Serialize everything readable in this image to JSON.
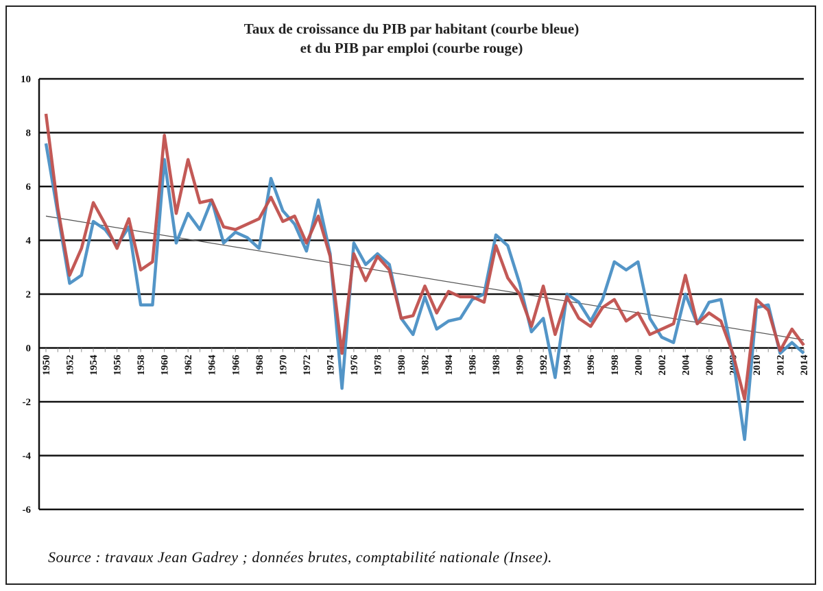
{
  "chart_data": {
    "type": "line",
    "title_lines": [
      "Taux de croissance du PIB par habitant (courbe bleue)",
      "et du PIB par emploi (courbe rouge)"
    ],
    "xlabel": "",
    "ylabel": "",
    "ylim": [
      -6,
      10
    ],
    "yticks": [
      "-6",
      "-4",
      "-2",
      "0",
      "2",
      "4",
      "6",
      "8",
      "10"
    ],
    "xlim": [
      1950,
      2014
    ],
    "xticks": [
      "1950",
      "1952",
      "1954",
      "1956",
      "1958",
      "1960",
      "1962",
      "1964",
      "1966",
      "1968",
      "1970",
      "1972",
      "1974",
      "1976",
      "1978",
      "1980",
      "1982",
      "1984",
      "1986",
      "1988",
      "1990",
      "1992",
      "1994",
      "1996",
      "1998",
      "2000",
      "2002",
      "2004",
      "2006",
      "2008",
      "2010",
      "2012",
      "2014"
    ],
    "grid": "horizontal",
    "x": [
      1950,
      1951,
      1952,
      1953,
      1954,
      1955,
      1956,
      1957,
      1958,
      1959,
      1960,
      1961,
      1962,
      1963,
      1964,
      1965,
      1966,
      1967,
      1968,
      1969,
      1970,
      1971,
      1972,
      1973,
      1974,
      1975,
      1976,
      1977,
      1978,
      1979,
      1980,
      1981,
      1982,
      1983,
      1984,
      1985,
      1986,
      1987,
      1988,
      1989,
      1990,
      1991,
      1992,
      1993,
      1994,
      1995,
      1996,
      1997,
      1998,
      1999,
      2000,
      2001,
      2002,
      2003,
      2004,
      2005,
      2006,
      2007,
      2008,
      2009,
      2010,
      2011,
      2012,
      2013,
      2014
    ],
    "series": [
      {
        "color": "#4a8fc4",
        "values": [
          7.6,
          5.0,
          2.4,
          2.7,
          4.7,
          4.4,
          3.8,
          4.5,
          1.6,
          1.6,
          7.0,
          3.9,
          5.0,
          4.4,
          5.5,
          3.9,
          4.3,
          4.1,
          3.7,
          6.3,
          5.1,
          4.6,
          3.6,
          5.5,
          3.5,
          -1.5,
          3.9,
          3.1,
          3.5,
          3.1,
          1.1,
          0.5,
          1.9,
          0.7,
          1.0,
          1.1,
          1.8,
          2.0,
          4.2,
          3.8,
          2.4,
          0.6,
          1.1,
          -1.1,
          2.0,
          1.7,
          1.0,
          1.8,
          3.2,
          2.9,
          3.2,
          1.1,
          0.4,
          0.2,
          2.0,
          0.9,
          1.7,
          1.8,
          -0.3,
          -3.4,
          1.5,
          1.6,
          -0.2,
          0.2,
          -0.2
        ]
      },
      {
        "color": "#c0504d",
        "values": [
          8.7,
          5.2,
          2.7,
          3.7,
          5.4,
          4.6,
          3.7,
          4.8,
          2.9,
          3.2,
          7.9,
          5.0,
          7.0,
          5.4,
          5.5,
          4.5,
          4.4,
          4.6,
          4.8,
          5.6,
          4.7,
          4.9,
          3.9,
          4.9,
          3.4,
          -0.2,
          3.5,
          2.5,
          3.4,
          2.9,
          1.1,
          1.2,
          2.3,
          1.3,
          2.1,
          1.9,
          1.9,
          1.7,
          3.8,
          2.6,
          2.0,
          0.8,
          2.3,
          0.5,
          1.9,
          1.1,
          0.8,
          1.5,
          1.8,
          1.0,
          1.3,
          0.5,
          0.7,
          0.9,
          2.7,
          0.9,
          1.3,
          1.0,
          -0.2,
          -1.9,
          1.8,
          1.4,
          -0.1,
          0.7,
          0.1
        ]
      }
    ],
    "trendline": {
      "color": "#555555",
      "x": [
        1950,
        2014
      ],
      "y": [
        4.9,
        0.3
      ]
    },
    "source": "Source : travaux Jean Gadrey ; données brutes, comptabilité nationale (Insee)."
  }
}
